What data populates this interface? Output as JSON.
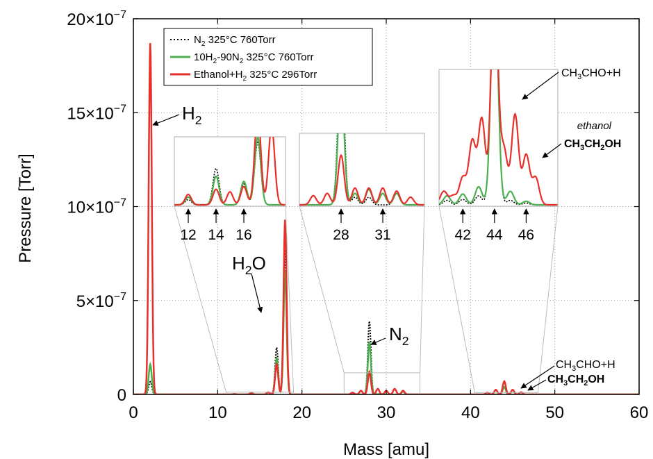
{
  "chart_data": {
    "type": "line",
    "xlabel": "Mass [amu]",
    "ylabel": "Pressure [Torr]",
    "xlim": [
      0,
      60
    ],
    "ylim": [
      0,
      2e-06
    ],
    "x_ticks": [
      "0",
      "10",
      "20",
      "30",
      "40",
      "50",
      "60"
    ],
    "y_ticks": [
      {
        "base": "0",
        "exp": ""
      },
      {
        "base": "5×10",
        "exp": "−7"
      },
      {
        "base": "10×10",
        "exp": "−7"
      },
      {
        "base": "15×10",
        "exp": "−7"
      },
      {
        "base": "20×10",
        "exp": "−7"
      }
    ],
    "grid": true,
    "legend_position": "top-left",
    "series": [
      {
        "name": "N2 325°C 760Torr",
        "legend": {
          "a": "N",
          "sub": "2",
          "b": " 325°C 760Torr"
        },
        "color": "#000000",
        "style": "dotted",
        "peaks": [
          [
            1.9,
            1e-08
          ],
          [
            2.0,
            5e-08
          ],
          [
            2.1,
            1e-08
          ],
          [
            12,
            2e-09
          ],
          [
            14,
            1e-08
          ],
          [
            16,
            1e-08
          ],
          [
            17,
            2.5e-07
          ],
          [
            18,
            7.7e-07
          ],
          [
            28,
            3.9e-07
          ],
          [
            29,
            2e-09
          ],
          [
            32,
            2e-08
          ],
          [
            44,
            4e-08
          ]
        ]
      },
      {
        "name": "10H2-90N2 325°C 760Torr",
        "legend": {
          "a": "10H",
          "sub": "2",
          "b": "-90N",
          "sub2": "2",
          "c": " 325°C 760Torr"
        },
        "color": "#4caf50",
        "style": "solid",
        "peaks": [
          [
            2.0,
            1.6e-07
          ],
          [
            12,
            2e-09
          ],
          [
            14,
            8e-09
          ],
          [
            16,
            1e-08
          ],
          [
            17,
            1.9e-07
          ],
          [
            18,
            6.6e-07
          ],
          [
            28,
            2.8e-07
          ],
          [
            29,
            2e-09
          ],
          [
            32,
            1.5e-08
          ],
          [
            44,
            4e-08
          ]
        ]
      },
      {
        "name": "Ethanol+H2 325°C 296Torr",
        "legend": {
          "a": "Ethanol+H",
          "sub": "2",
          "b": " 325°C 296Torr"
        },
        "color": "#e8302a",
        "style": "solid",
        "peaks": [
          [
            2.0,
            1.87e-06
          ],
          [
            12,
            2e-09
          ],
          [
            14,
            6e-09
          ],
          [
            16,
            1.2e-08
          ],
          [
            17,
            1.6e-07
          ],
          [
            18,
            9.3e-07
          ],
          [
            26,
            1e-08
          ],
          [
            27,
            2e-08
          ],
          [
            28,
            1.2e-07
          ],
          [
            29,
            3e-08
          ],
          [
            30,
            2e-08
          ],
          [
            31,
            3e-08
          ],
          [
            32,
            2e-08
          ],
          [
            42,
            1e-08
          ],
          [
            43,
            2.5e-08
          ],
          [
            44,
            7e-08
          ],
          [
            45,
            2.5e-08
          ],
          [
            46,
            1.2e-08
          ]
        ]
      }
    ],
    "insets": [
      {
        "ticks": [
          "12",
          "14",
          "16"
        ]
      },
      {
        "ticks": [
          "28",
          "31"
        ]
      },
      {
        "ticks": [
          "42",
          "44",
          "46"
        ]
      }
    ],
    "annotations": {
      "h2": {
        "a": "H",
        "sub": "2"
      },
      "h2o": {
        "a": "H",
        "sub": "2",
        "b": "O"
      },
      "n2": {
        "a": "N",
        "sub": "2"
      },
      "acet_top": {
        "a": "CH",
        "sub": "3",
        "b": "CHO+H"
      },
      "ethanol_word": "ethanol",
      "ethanol_top": {
        "a": "CH",
        "sub": "3",
        "b": "CH",
        "sub2": "2",
        "c": "OH"
      },
      "acet_bottom": {
        "a": "CH",
        "sub": "3",
        "b": "CHO+H"
      },
      "ethanol_bottom": {
        "a": "CH",
        "sub": "3",
        "b": "CH",
        "sub2": "2",
        "c": "OH"
      }
    }
  }
}
